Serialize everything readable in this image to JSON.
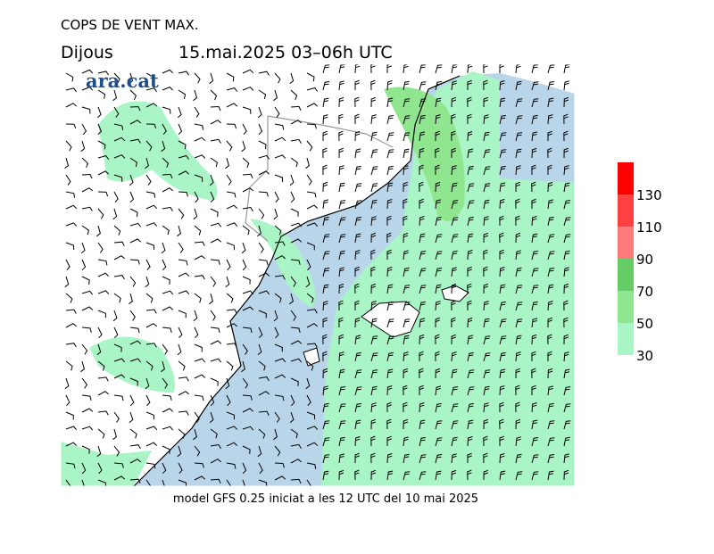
{
  "header": {
    "title": "COPS DE VENT MAX.",
    "day": "Dijous",
    "period": "15.mai.2025 03–06h UTC"
  },
  "logo": "ara.cat",
  "footer": "model GFS 0.25 iniciat a les 12 UTC del 10 mai 2025",
  "legend": {
    "levels": [
      30,
      50,
      70,
      90,
      110,
      130
    ],
    "colors": [
      "#aaf5c6",
      "#8fe68f",
      "#66cc66",
      "#ff7a7a",
      "#ff4040",
      "#ff0000"
    ]
  }
}
